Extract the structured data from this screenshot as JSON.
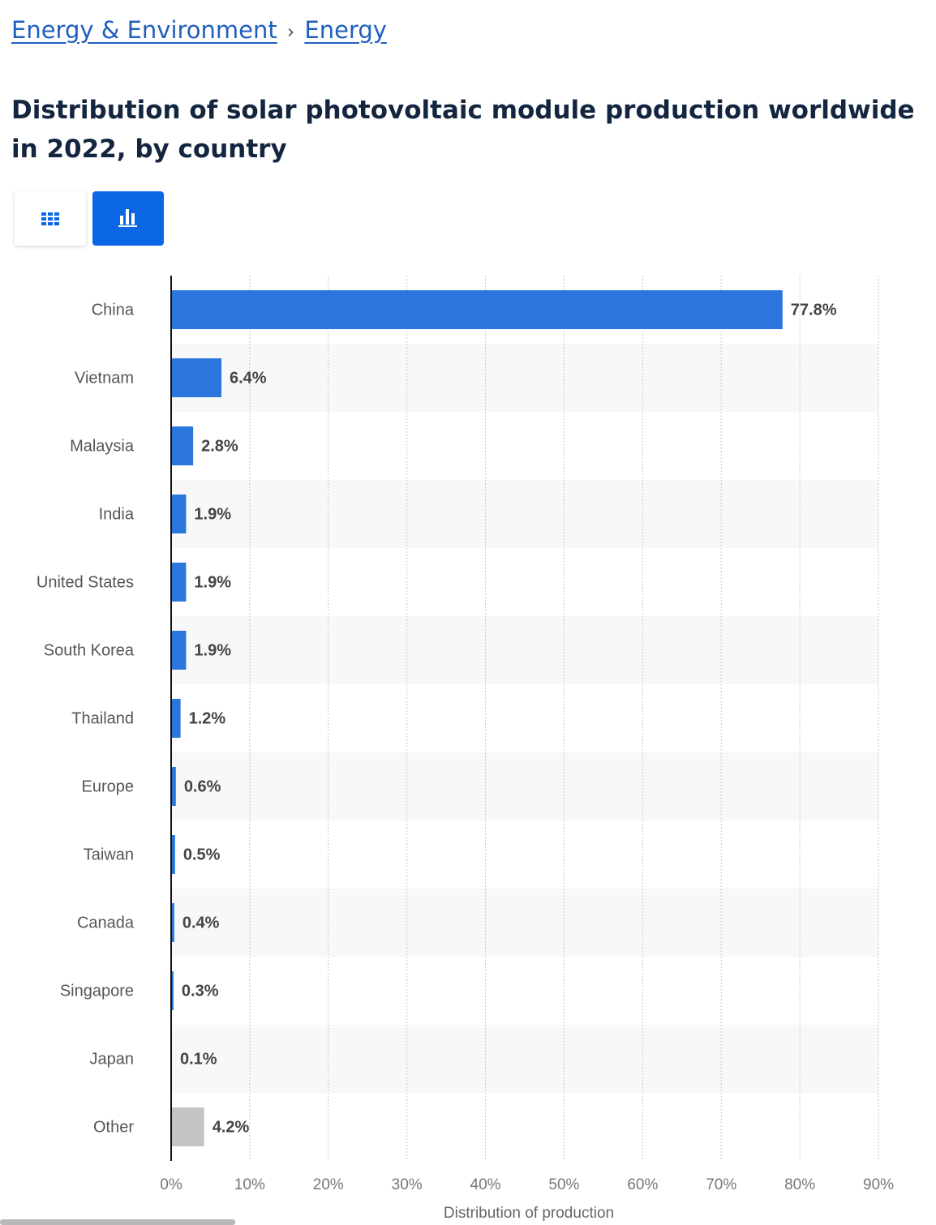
{
  "breadcrumbs": [
    "Energy & Environment",
    "Energy"
  ],
  "breadcrumb_separator": "›",
  "chart_data": {
    "type": "bar",
    "orientation": "horizontal",
    "title": "Distribution of solar photovoltaic module production worldwide in 2022, by country",
    "x_label": "Distribution of production",
    "categories": [
      "China",
      "Vietnam",
      "Malaysia",
      "India",
      "United States",
      "South Korea",
      "Thailand",
      "Europe",
      "Taiwan",
      "Canada",
      "Singapore",
      "Japan",
      "Other"
    ],
    "values": [
      77.8,
      6.4,
      2.8,
      1.9,
      1.9,
      1.9,
      1.2,
      0.6,
      0.5,
      0.4,
      0.3,
      0.1,
      4.2
    ],
    "value_labels": [
      "77.8%",
      "6.4%",
      "2.8%",
      "1.9%",
      "1.9%",
      "1.9%",
      "1.2%",
      "0.6%",
      "0.5%",
      "0.4%",
      "0.3%",
      "0.1%",
      "4.2%"
    ],
    "colors": [
      "#2a76dd",
      "#2a76dd",
      "#2a76dd",
      "#2a76dd",
      "#2a76dd",
      "#2a76dd",
      "#2a76dd",
      "#2a76dd",
      "#2a76dd",
      "#2a76dd",
      "#2a76dd",
      "#2a76dd",
      "#c4c4c4"
    ],
    "xlim": [
      0,
      90
    ],
    "xticks": [
      {
        "value": 0,
        "label": "0%"
      },
      {
        "value": 10,
        "label": "10%"
      },
      {
        "value": 20,
        "label": "20%"
      },
      {
        "value": 30,
        "label": "30%"
      },
      {
        "value": 40,
        "label": "40%"
      },
      {
        "value": 50,
        "label": "50%"
      },
      {
        "value": 60,
        "label": "60%"
      },
      {
        "value": 70,
        "label": "70%"
      },
      {
        "value": 80,
        "label": "80%"
      },
      {
        "value": 90,
        "label": "90%"
      }
    ],
    "grid": true
  }
}
